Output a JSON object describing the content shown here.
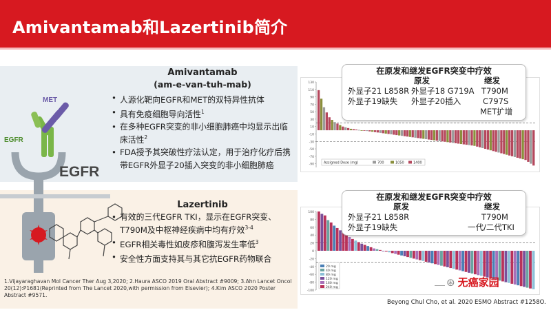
{
  "header": {
    "title": "Amivantamab和Lazertinib简介"
  },
  "illustration": {
    "met_label": "MET",
    "egfr_small_label": "EGFR",
    "egfr_big_label": "EGFR"
  },
  "amivantamab": {
    "name": "Amivantamab",
    "pronunciation": "(am-e-van-tuh-mab)",
    "bullets": [
      {
        "text": "人源化靶向EGFR和MET的双特异性抗体",
        "sup": ""
      },
      {
        "text": "具有免疫细胞导向活性",
        "sup": "1"
      },
      {
        "text": "在多种EGFR突变的非小细胞肺癌中均显示出临床活性",
        "sup": "2"
      },
      {
        "text": "FDA授予其突破性疗法认定，用于治疗化疗后携带EGFR外显子20插入突变的非小细胞肺癌",
        "sup": ""
      }
    ]
  },
  "lazertinib": {
    "name": "Lazertinib",
    "bullets": [
      {
        "text": "有效的三代EGFR TKI，显示在EGFR突变、T790M及中枢神经疾病中均有疗效",
        "sup": "3-4"
      },
      {
        "text": "EGFR相关毒性如皮疹和腹泻发生率低",
        "sup": "3"
      },
      {
        "text": "安全性方面支持其与其它抗EGFR药物联合",
        "sup": ""
      }
    ]
  },
  "references": "1.Vijayaraghavan Mol Cancer Ther Aug 3,2020; 2.Haura ASCO 2019 Oral Abstract #9009; 3.Ahn Lancet Oncol 20(12):P1681(Reprinted from The Lancet 2020,with permission from Elsevier); 4.Kim ASCO 2020 Poster Abstract #9571.",
  "credit": "Beyong Chul Cho, et al. 2020 ESMO Abstract #1258O.",
  "watermark": {
    "symbol": "⊛",
    "text": "无癌家园"
  },
  "callout_top": {
    "title": "在原发和继发EGFR突变中疗效",
    "primary_header": "原发",
    "secondary_header": "继发",
    "r1a": "外显子21 L858R",
    "r1b": "外显子18 G719A",
    "r1c": "T790M",
    "r2a": "外显子19缺失",
    "r2b": "外显子20插入",
    "r2c": "C797S",
    "r3c": "MET扩增"
  },
  "callout_bottom": {
    "title": "在原发和继发EGFR突变中疗效",
    "primary_header": "原发",
    "secondary_header": "继发",
    "r1a": "外显子21 L858R",
    "r1c": "T790M",
    "r2a": "外显子19缺失",
    "r2c": "一代/二代TKI"
  },
  "chart_data": [
    {
      "type": "bar",
      "title": "",
      "ylim": [
        -100,
        130
      ],
      "yticks": [
        130,
        110,
        90,
        70,
        50,
        30,
        10,
        -10,
        -30,
        -50,
        -70,
        -90
      ],
      "legend_title": "Assigned Dose (mg)",
      "legend": [
        "700",
        "1050",
        "1400"
      ],
      "colors": [
        "#9b9b9b",
        "#8a8f3c",
        "#b5485d"
      ],
      "values": [
        108,
        85,
        62,
        48,
        35,
        28,
        22,
        18,
        14,
        10,
        8,
        6,
        4,
        3,
        2,
        1,
        0,
        -1,
        -2,
        -3,
        -4,
        -5,
        -6,
        -7,
        -8,
        -9,
        -10,
        -11,
        -12,
        -13,
        -14,
        -15,
        -16,
        -17,
        -18,
        -19,
        -20,
        -21,
        -22,
        -23,
        -24,
        -25,
        -26,
        -27,
        -28,
        -29,
        -30,
        -31,
        -32,
        -33,
        -34,
        -35,
        -36,
        -37,
        -38,
        -39,
        -40,
        -41,
        -42,
        -44,
        -46,
        -48,
        -50,
        -52,
        -54,
        -56,
        -58,
        -60,
        -62,
        -64,
        -66,
        -68,
        -70,
        -72,
        -74,
        -76,
        -78,
        -80,
        -85,
        -90,
        -95
      ],
      "series_index": [
        2,
        1,
        0,
        2,
        2,
        1,
        0,
        2,
        1,
        2,
        0,
        2,
        1,
        2,
        2,
        0,
        1,
        2,
        0,
        2,
        1,
        2,
        2,
        0,
        2,
        1,
        2,
        0,
        2,
        2,
        1,
        0,
        2,
        2,
        1,
        2,
        0,
        2,
        2,
        1,
        0,
        2,
        2,
        1,
        2,
        0,
        2,
        2,
        1,
        2,
        0,
        2,
        2,
        1,
        2,
        2,
        0,
        2,
        1,
        2,
        2,
        0,
        2,
        2,
        1,
        2,
        2,
        0,
        2,
        2,
        1,
        2,
        2,
        0,
        2,
        2,
        1,
        2,
        2,
        0,
        2
      ]
    },
    {
      "type": "bar",
      "title": "",
      "ylim": [
        -100,
        100
      ],
      "yticks": [
        100,
        80,
        60,
        40,
        20,
        0,
        -20,
        -40,
        -60,
        -80,
        -100
      ],
      "legend": [
        "20 mg",
        "40 mg",
        "80 mg",
        "120 mg",
        "160 mg",
        "240 mg"
      ],
      "colors": [
        "#4a7fb5",
        "#6aa3a0",
        "#8cc0d8",
        "#7a4f9a",
        "#a86fb8",
        "#b8325a"
      ],
      "values": [
        100,
        94,
        90,
        78,
        72,
        64,
        58,
        52,
        46,
        40,
        35,
        30,
        26,
        22,
        18,
        15,
        12,
        9,
        6,
        4,
        2,
        0,
        -2,
        -4,
        -6,
        -8,
        -10,
        -12,
        -14,
        -16,
        -18,
        -20,
        -22,
        -24,
        -26,
        -28,
        -30,
        -32,
        -34,
        -36,
        -38,
        -40,
        -42,
        -44,
        -46,
        -48,
        -50,
        -52,
        -54,
        -56,
        -58,
        -60,
        -62,
        -64,
        -66,
        -68,
        -70,
        -72,
        -74,
        -76,
        -78,
        -80,
        -82,
        -84,
        -86,
        -88,
        -90,
        -92,
        -94,
        -96,
        -98
      ],
      "series_index": [
        5,
        3,
        5,
        1,
        5,
        0,
        5,
        3,
        5,
        5,
        4,
        5,
        2,
        5,
        3,
        5,
        0,
        5,
        4,
        1,
        5,
        3,
        5,
        2,
        5,
        4,
        5,
        0,
        3,
        5,
        1,
        5,
        4,
        5,
        2,
        5,
        3,
        0,
        5,
        4,
        1,
        5,
        3,
        5,
        2,
        5,
        4,
        0,
        5,
        3,
        1,
        5,
        4,
        2,
        5,
        3,
        5,
        0,
        4,
        1,
        5,
        3,
        2,
        5,
        4,
        0,
        5,
        3,
        1,
        5,
        2
      ]
    }
  ]
}
